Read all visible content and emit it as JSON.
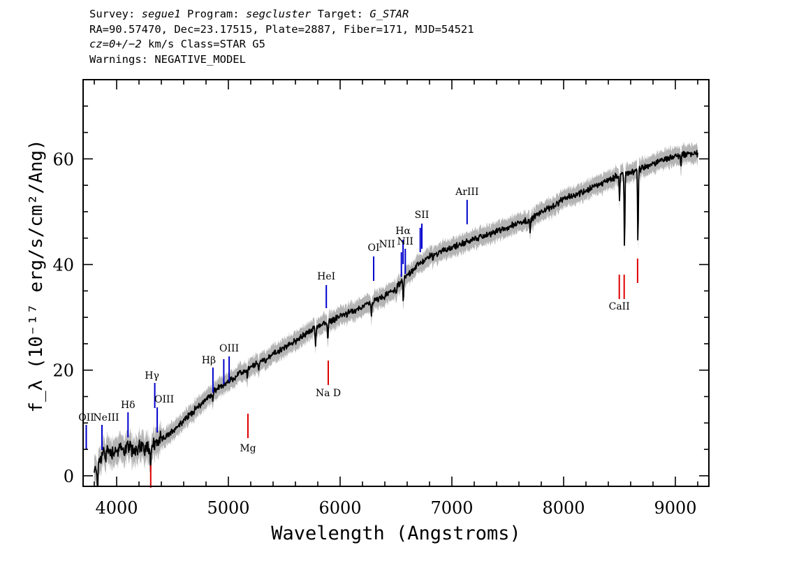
{
  "header": {
    "line1": {
      "a": "Survey: ",
      "b": "segue1",
      "c": " Program: ",
      "d": "segcluster",
      "e": " Target: ",
      "f": "G_STAR"
    },
    "line2": "RA=90.57470, Dec=23.17515, Plate=2887, Fiber=171, MJD=54521",
    "line3": {
      "a": "cz=0+/−2",
      "b": " km/s Class=STAR G5"
    },
    "line4": "Warnings: NEGATIVE_MODEL"
  },
  "colors": {
    "emission": "#0000cc",
    "absorption": "#dd0000",
    "flux": "#000000",
    "error": "#b4b4b4"
  },
  "chart_data": {
    "type": "line",
    "title": "",
    "xlabel": "Wavelength (Angstroms)",
    "ylabel": "f_λ (10⁻¹⁷ erg/s/cm²/Ang)",
    "xlim": [
      3700,
      9300
    ],
    "ylim": [
      -2,
      75
    ],
    "x_ticks": [
      4000,
      5000,
      6000,
      7000,
      8000,
      9000
    ],
    "y_ticks": [
      0,
      20,
      40,
      60
    ],
    "grid": false,
    "series": [
      {
        "points": [
          [
            3800,
            0.5
          ],
          [
            3850,
            3
          ],
          [
            3900,
            5
          ],
          [
            3950,
            4.5
          ],
          [
            4000,
            4.8
          ],
          [
            4050,
            5
          ],
          [
            4100,
            5.3
          ],
          [
            4150,
            4.8
          ],
          [
            4200,
            5.5
          ],
          [
            4250,
            5.2
          ],
          [
            4300,
            5.5
          ],
          [
            4350,
            6.5
          ],
          [
            4400,
            6.8
          ],
          [
            4450,
            7.5
          ],
          [
            4500,
            8.5
          ],
          [
            4550,
            9.5
          ],
          [
            4600,
            10.5
          ],
          [
            4650,
            11.5
          ],
          [
            4700,
            12.5
          ],
          [
            4750,
            13.5
          ],
          [
            4800,
            14.5
          ],
          [
            4850,
            15.5
          ],
          [
            4900,
            16.5
          ],
          [
            4950,
            17.2
          ],
          [
            5000,
            17.8
          ],
          [
            5050,
            18.5
          ],
          [
            5100,
            19.3
          ],
          [
            5150,
            19.8
          ],
          [
            5200,
            20.5
          ],
          [
            5300,
            21.8
          ],
          [
            5400,
            23
          ],
          [
            5500,
            24.2
          ],
          [
            5600,
            25.5
          ],
          [
            5700,
            27
          ],
          [
            5800,
            28.3
          ],
          [
            5900,
            29.2
          ],
          [
            6000,
            30.2
          ],
          [
            6100,
            31
          ],
          [
            6200,
            32
          ],
          [
            6300,
            33
          ],
          [
            6400,
            34
          ],
          [
            6500,
            35.5
          ],
          [
            6600,
            38
          ],
          [
            6700,
            40
          ],
          [
            6800,
            41.5
          ],
          [
            6900,
            42.5
          ],
          [
            7000,
            43.2
          ],
          [
            7100,
            44
          ],
          [
            7200,
            44.8
          ],
          [
            7300,
            45.5
          ],
          [
            7400,
            46.3
          ],
          [
            7500,
            47
          ],
          [
            7600,
            48
          ],
          [
            7700,
            48.5
          ],
          [
            7800,
            50
          ],
          [
            7900,
            51
          ],
          [
            8000,
            52.3
          ],
          [
            8100,
            53.2
          ],
          [
            8200,
            54
          ],
          [
            8300,
            55
          ],
          [
            8400,
            56
          ],
          [
            8500,
            57
          ],
          [
            8600,
            57.5
          ],
          [
            8700,
            58.2
          ],
          [
            8800,
            59
          ],
          [
            8900,
            60
          ],
          [
            9000,
            60.5
          ],
          [
            9100,
            61
          ],
          [
            9200,
            61
          ]
        ],
        "dips": [
          [
            3830,
            4
          ],
          [
            3900,
            2
          ],
          [
            4305,
            3.5
          ],
          [
            4340,
            1.5
          ],
          [
            4860,
            1.5
          ],
          [
            5170,
            1.5
          ],
          [
            5270,
            1.2
          ],
          [
            5330,
            0.8
          ],
          [
            5890,
            3.5
          ],
          [
            5780,
            4
          ],
          [
            6280,
            2.5
          ],
          [
            6500,
            1.5
          ],
          [
            6565,
            4
          ],
          [
            6830,
            1
          ],
          [
            7700,
            2.5
          ],
          [
            8500,
            5
          ],
          [
            8545,
            14
          ],
          [
            8665,
            14
          ],
          [
            9050,
            2.5
          ]
        ]
      }
    ],
    "line_labels": [
      {
        "label": "OII",
        "wavelength": 3728,
        "color": "emission"
      },
      {
        "label": "NeIII",
        "wavelength": 3869,
        "color": "emission"
      },
      {
        "label": "Hδ",
        "wavelength": 4102,
        "color": "emission"
      },
      {
        "label": "Hγ",
        "wavelength": 4341,
        "color": "emission"
      },
      {
        "label": "OIII",
        "wavelength": 4363,
        "color": "emission"
      },
      {
        "label": "Hβ",
        "wavelength": 4862,
        "color": "emission"
      },
      {
        "label": "OIII",
        "wavelength": 4959,
        "color": "emission"
      },
      {
        "label": "OIII",
        "wavelength": 5007,
        "color": "emission"
      },
      {
        "label": "HeI",
        "wavelength": 5876,
        "color": "emission"
      },
      {
        "label": "OI",
        "wavelength": 6300,
        "color": "emission"
      },
      {
        "label": "NII",
        "wavelength": 6548,
        "color": "emission"
      },
      {
        "label": "Hα",
        "wavelength": 6563,
        "color": "emission"
      },
      {
        "label": "NII",
        "wavelength": 6583,
        "color": "emission"
      },
      {
        "label": "SII",
        "wavelength": 6717,
        "color": "emission"
      },
      {
        "label": "SII",
        "wavelength": 6731,
        "color": "emission"
      },
      {
        "label": "ArIII",
        "wavelength": 7136,
        "color": "emission"
      },
      {
        "label": "",
        "wavelength": 4305,
        "color": "absorption"
      },
      {
        "label": "Mg",
        "wavelength": 5175,
        "color": "absorption"
      },
      {
        "label": "Na D",
        "wavelength": 5894,
        "color": "absorption"
      },
      {
        "label": "CaII",
        "wavelength": 8498,
        "color": "absorption"
      },
      {
        "label": "",
        "wavelength": 8542,
        "color": "absorption"
      },
      {
        "label": "",
        "wavelength": 8662,
        "color": "absorption"
      }
    ]
  }
}
